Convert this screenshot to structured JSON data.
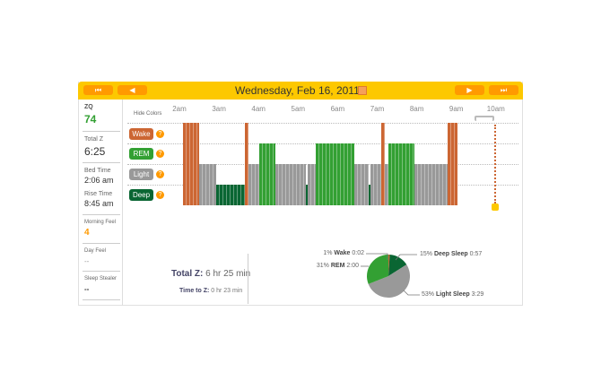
{
  "header": {
    "date": "Wednesday, Feb 16, 2011",
    "first_label": "⏮",
    "prev_label": "◀",
    "next_label": "▶",
    "last_label": "⏭"
  },
  "sidebar": {
    "zq_label": "ZQ",
    "zq_value": "74",
    "totalz_label": "Total Z",
    "totalz_value": "6:25",
    "bedtime_label": "Bed Time",
    "bedtime_value": "2:06 am",
    "risetime_label": "Rise Time",
    "risetime_value": "8:45 am",
    "morning_label": "Morning Feel",
    "morning_value": "4",
    "day_label": "Day Feel",
    "day_value": "--",
    "stealer_label": "Sleep Stealer",
    "stealer_value": "--"
  },
  "hypnogram": {
    "hide_colors": "Hide Colors",
    "time_labels": [
      "2am",
      "3am",
      "4am",
      "5am",
      "6am",
      "7am",
      "8am",
      "9am",
      "10am"
    ],
    "legend": [
      {
        "label": "Wake",
        "color": "#cc6633"
      },
      {
        "label": "REM",
        "color": "#33a033"
      },
      {
        "label": "Light",
        "color": "#999999"
      },
      {
        "label": "Deep",
        "color": "#0a6633"
      }
    ],
    "help_icon": "?",
    "segments": [
      [
        "2:06",
        "2:30",
        "Wake"
      ],
      [
        "2:30",
        "2:56",
        "Light"
      ],
      [
        "2:56",
        "3:39",
        "Deep"
      ],
      [
        "3:39",
        "3:45",
        "Wake"
      ],
      [
        "3:45",
        "4:01",
        "Light"
      ],
      [
        "4:01",
        "4:26",
        "REM"
      ],
      [
        "4:26",
        "5:12",
        "Light"
      ],
      [
        "5:12",
        "5:15",
        "Deep"
      ],
      [
        "5:15",
        "5:27",
        "Light"
      ],
      [
        "5:27",
        "6:25",
        "REM"
      ],
      [
        "6:25",
        "6:47",
        "Light"
      ],
      [
        "6:47",
        "6:50",
        "Deep"
      ],
      [
        "6:50",
        "7:06",
        "Light"
      ],
      [
        "7:06",
        "7:12",
        "Wake"
      ],
      [
        "7:12",
        "7:17",
        "Light"
      ],
      [
        "7:17",
        "7:57",
        "REM"
      ],
      [
        "7:57",
        "8:47",
        "Light"
      ],
      [
        "8:47",
        "9:02",
        "Wake"
      ]
    ]
  },
  "summary": {
    "totalz_label": "Total Z:",
    "totalz_value": "6 hr 25 min",
    "ttz_label": "Time to Z:",
    "ttz_value": "0 hr 23 min"
  },
  "pie": {
    "slices": [
      {
        "pct": "1%",
        "name": "Wake",
        "time": "0:02",
        "value": 1,
        "color": "#cc6633"
      },
      {
        "pct": "15%",
        "name": "Deep Sleep",
        "time": "0:57",
        "value": 15,
        "color": "#0a6633"
      },
      {
        "pct": "53%",
        "name": "Light Sleep",
        "time": "3:29",
        "value": 53,
        "color": "#999999"
      },
      {
        "pct": "31%",
        "name": "REM",
        "time": "2:00",
        "value": 31,
        "color": "#33a033"
      }
    ]
  }
}
